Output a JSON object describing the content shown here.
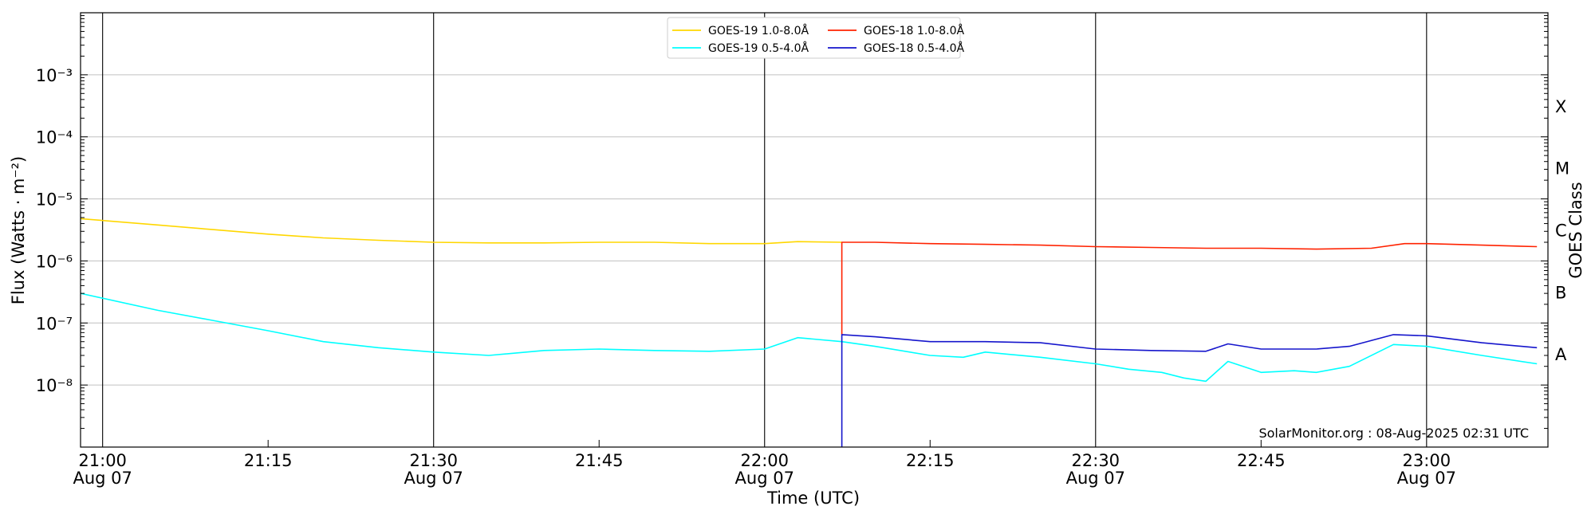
{
  "chart_data": {
    "type": "line",
    "xlabel": "Time (UTC)",
    "ylabel": "Flux (Watts · m⁻²)",
    "y_scale": "log",
    "ylim": [
      1e-09,
      0.01
    ],
    "xlim": [
      "2025-08-07 20:58",
      "2025-08-07 23:11"
    ],
    "grid": "horizontal lines at y decades, vertical lines at every 30 minutes",
    "legend_placement": "top-center",
    "right_axis_label": "GOES Class",
    "goes_classes": [
      "X",
      "M",
      "C",
      "B",
      "A"
    ],
    "watermark": "SolarMonitor.org : 08-Aug-2025 02:31 UTC",
    "x_ticks": [
      {
        "time": "2025-08-07 21:00",
        "line1": "21:00",
        "line2": "Aug 07"
      },
      {
        "time": "2025-08-07 21:15",
        "line1": "21:15",
        "line2": ""
      },
      {
        "time": "2025-08-07 21:30",
        "line1": "21:30",
        "line2": "Aug 07"
      },
      {
        "time": "2025-08-07 21:45",
        "line1": "21:45",
        "line2": ""
      },
      {
        "time": "2025-08-07 22:00",
        "line1": "22:00",
        "line2": "Aug 07"
      },
      {
        "time": "2025-08-07 22:15",
        "line1": "22:15",
        "line2": ""
      },
      {
        "time": "2025-08-07 22:30",
        "line1": "22:30",
        "line2": "Aug 07"
      },
      {
        "time": "2025-08-07 22:45",
        "line1": "22:45",
        "line2": ""
      },
      {
        "time": "2025-08-07 23:00",
        "line1": "23:00",
        "line2": "Aug 07"
      }
    ],
    "y_ticks": [
      {
        "value": 1e-08,
        "label": "10⁻⁸"
      },
      {
        "value": 1e-07,
        "label": "10⁻⁷"
      },
      {
        "value": 1e-06,
        "label": "10⁻⁶"
      },
      {
        "value": 1e-05,
        "label": "10⁻⁵"
      },
      {
        "value": 0.0001,
        "label": "10⁻⁴"
      },
      {
        "value": 0.001,
        "label": "10⁻³"
      }
    ],
    "series": [
      {
        "name": "GOES-19 1.0-8.0Å",
        "color": "#FFD700",
        "x": [
          "2025-08-07 20:58",
          "2025-08-07 21:05",
          "2025-08-07 21:10",
          "2025-08-07 21:15",
          "2025-08-07 21:20",
          "2025-08-07 21:25",
          "2025-08-07 21:30",
          "2025-08-07 21:35",
          "2025-08-07 21:40",
          "2025-08-07 21:45",
          "2025-08-07 21:50",
          "2025-08-07 21:55",
          "2025-08-07 22:00",
          "2025-08-07 22:03",
          "2025-08-07 22:07"
        ],
        "y": [
          4.8e-06,
          3.8e-06,
          3.2e-06,
          2.7e-06,
          2.35e-06,
          2.15e-06,
          2e-06,
          1.95e-06,
          1.95e-06,
          2e-06,
          2e-06,
          1.9e-06,
          1.9e-06,
          2.05e-06,
          2e-06
        ]
      },
      {
        "name": "GOES-18 1.0-8.0Å",
        "color": "#FF2200",
        "x": [
          "2025-08-07 22:07",
          "2025-08-07 22:07",
          "2025-08-07 22:10",
          "2025-08-07 22:15",
          "2025-08-07 22:20",
          "2025-08-07 22:25",
          "2025-08-07 22:30",
          "2025-08-07 22:35",
          "2025-08-07 22:40",
          "2025-08-07 22:45",
          "2025-08-07 22:50",
          "2025-08-07 22:55",
          "2025-08-07 22:58",
          "2025-08-07 23:00",
          "2025-08-07 23:05",
          "2025-08-07 23:10"
        ],
        "y": [
          6.5e-08,
          2e-06,
          2e-06,
          1.9e-06,
          1.85e-06,
          1.8e-06,
          1.7e-06,
          1.65e-06,
          1.6e-06,
          1.6e-06,
          1.55e-06,
          1.6e-06,
          1.9e-06,
          1.9e-06,
          1.8e-06,
          1.7e-06
        ]
      },
      {
        "name": "GOES-19 0.5-4.0Å",
        "color": "#00FFFF",
        "x": [
          "2025-08-07 20:58",
          "2025-08-07 21:05",
          "2025-08-07 21:10",
          "2025-08-07 21:15",
          "2025-08-07 21:20",
          "2025-08-07 21:25",
          "2025-08-07 21:30",
          "2025-08-07 21:35",
          "2025-08-07 21:40",
          "2025-08-07 21:45",
          "2025-08-07 21:50",
          "2025-08-07 21:55",
          "2025-08-07 22:00",
          "2025-08-07 22:03",
          "2025-08-07 22:07",
          "2025-08-07 22:10",
          "2025-08-07 22:15",
          "2025-08-07 22:18",
          "2025-08-07 22:20",
          "2025-08-07 22:25",
          "2025-08-07 22:30",
          "2025-08-07 22:33",
          "2025-08-07 22:36",
          "2025-08-07 22:38",
          "2025-08-07 22:40",
          "2025-08-07 22:42",
          "2025-08-07 22:45",
          "2025-08-07 22:48",
          "2025-08-07 22:50",
          "2025-08-07 22:53",
          "2025-08-07 22:57",
          "2025-08-07 23:00",
          "2025-08-07 23:05",
          "2025-08-07 23:10"
        ],
        "y": [
          3e-07,
          1.6e-07,
          1.1e-07,
          7.5e-08,
          5e-08,
          4e-08,
          3.4e-08,
          3e-08,
          3.6e-08,
          3.8e-08,
          3.6e-08,
          3.5e-08,
          3.8e-08,
          5.8e-08,
          5e-08,
          4.2e-08,
          3e-08,
          2.8e-08,
          3.4e-08,
          2.8e-08,
          2.2e-08,
          1.8e-08,
          1.6e-08,
          1.3e-08,
          1.15e-08,
          2.4e-08,
          1.6e-08,
          1.7e-08,
          1.6e-08,
          2e-08,
          4.5e-08,
          4.2e-08,
          3e-08,
          2.2e-08
        ]
      },
      {
        "name": "GOES-18 0.5-4.0Å",
        "color": "#1515CC",
        "x": [
          "2025-08-07 22:07",
          "2025-08-07 22:07",
          "2025-08-07 22:10",
          "2025-08-07 22:15",
          "2025-08-07 22:20",
          "2025-08-07 22:25",
          "2025-08-07 22:30",
          "2025-08-07 22:35",
          "2025-08-07 22:40",
          "2025-08-07 22:42",
          "2025-08-07 22:45",
          "2025-08-07 22:50",
          "2025-08-07 22:53",
          "2025-08-07 22:57",
          "2025-08-07 23:00",
          "2025-08-07 23:05",
          "2025-08-07 23:10"
        ],
        "y": [
          1e-09,
          6.5e-08,
          6e-08,
          5e-08,
          5e-08,
          4.8e-08,
          3.8e-08,
          3.6e-08,
          3.5e-08,
          4.6e-08,
          3.8e-08,
          3.8e-08,
          4.2e-08,
          6.5e-08,
          6.2e-08,
          4.8e-08,
          4e-08
        ]
      }
    ]
  }
}
